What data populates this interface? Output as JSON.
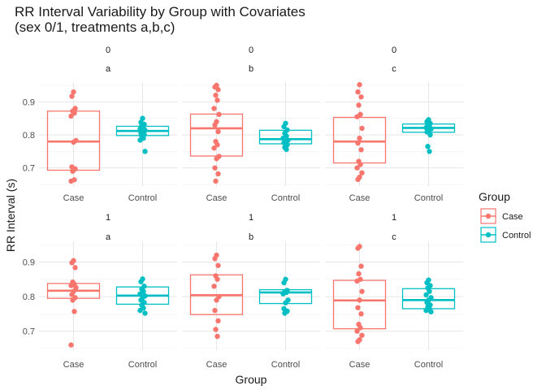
{
  "chart_data": {
    "type": "boxplot",
    "title": [
      "RR Interval Variability by Group with Covariates",
      "(sex 0/1, treatments a,b,c)"
    ],
    "xlabel": "Group",
    "ylabel": "RR Interval (s)",
    "categories": [
      "Case",
      "Control"
    ],
    "y_ticks": [
      0.7,
      0.8,
      0.9
    ],
    "ylim": [
      0.645,
      0.96
    ],
    "grid": true,
    "legend": {
      "title": "Group",
      "placement": "right",
      "entries": [
        {
          "name": "Case",
          "color": "#F8766D"
        },
        {
          "name": "Control",
          "color": "#00BFC4"
        }
      ]
    },
    "colors": {
      "Case": "#F8766D",
      "Control": "#00BFC4"
    },
    "panels": [
      {
        "sex": "0",
        "treatment": "a",
        "groups": [
          {
            "name": "Case",
            "box": {
              "q1": 0.693,
              "median": 0.78,
              "q3": 0.872
            },
            "points": [
              0.93,
              0.917,
              0.88,
              0.872,
              0.866,
              0.857,
              0.783,
              0.778,
              0.703,
              0.697,
              0.69,
              0.664,
              0.66
            ]
          },
          {
            "name": "Control",
            "box": {
              "q1": 0.798,
              "median": 0.812,
              "q3": 0.826
            },
            "points": [
              0.85,
              0.838,
              0.832,
              0.828,
              0.822,
              0.818,
              0.814,
              0.81,
              0.806,
              0.801,
              0.796,
              0.79,
              0.784,
              0.75
            ]
          }
        ]
      },
      {
        "sex": "0",
        "treatment": "b",
        "groups": [
          {
            "name": "Case",
            "box": {
              "q1": 0.736,
              "median": 0.82,
              "q3": 0.863
            },
            "points": [
              0.95,
              0.945,
              0.937,
              0.92,
              0.905,
              0.88,
              0.862,
              0.84,
              0.83,
              0.81,
              0.78,
              0.77,
              0.76,
              0.735,
              0.728,
              0.7,
              0.682,
              0.66
            ]
          },
          {
            "name": "Control",
            "box": {
              "q1": 0.773,
              "median": 0.787,
              "q3": 0.814
            },
            "points": [
              0.835,
              0.825,
              0.815,
              0.805,
              0.797,
              0.79,
              0.784,
              0.78,
              0.776,
              0.77,
              0.762,
              0.756
            ]
          }
        ]
      },
      {
        "sex": "0",
        "treatment": "c",
        "groups": [
          {
            "name": "Case",
            "box": {
              "q1": 0.715,
              "median": 0.78,
              "q3": 0.853
            },
            "points": [
              0.952,
              0.93,
              0.915,
              0.89,
              0.862,
              0.855,
              0.82,
              0.79,
              0.775,
              0.755,
              0.72,
              0.71,
              0.7,
              0.685,
              0.672,
              0.665
            ]
          },
          {
            "name": "Control",
            "box": {
              "q1": 0.808,
              "median": 0.821,
              "q3": 0.833
            },
            "points": [
              0.846,
              0.84,
              0.835,
              0.83,
              0.826,
              0.822,
              0.818,
              0.814,
              0.809,
              0.8,
              0.765,
              0.75
            ]
          }
        ]
      },
      {
        "sex": "1",
        "treatment": "a",
        "groups": [
          {
            "name": "Case",
            "box": {
              "q1": 0.795,
              "median": 0.817,
              "q3": 0.838
            },
            "points": [
              0.904,
              0.898,
              0.884,
              0.842,
              0.836,
              0.832,
              0.826,
              0.815,
              0.806,
              0.797,
              0.79,
              0.757,
              0.66
            ]
          },
          {
            "name": "Control",
            "box": {
              "q1": 0.778,
              "median": 0.803,
              "q3": 0.828
            },
            "points": [
              0.851,
              0.843,
              0.83,
              0.822,
              0.815,
              0.808,
              0.802,
              0.797,
              0.79,
              0.783,
              0.775,
              0.767,
              0.76,
              0.752
            ]
          }
        ]
      },
      {
        "sex": "1",
        "treatment": "b",
        "groups": [
          {
            "name": "Case",
            "box": {
              "q1": 0.748,
              "median": 0.804,
              "q3": 0.863
            },
            "points": [
              0.92,
              0.91,
              0.89,
              0.86,
              0.85,
              0.83,
              0.8,
              0.79,
              0.76,
              0.73,
              0.705,
              0.685
            ]
          },
          {
            "name": "Control",
            "box": {
              "q1": 0.78,
              "median": 0.812,
              "q3": 0.82
            },
            "points": [
              0.85,
              0.84,
              0.818,
              0.815,
              0.812,
              0.808,
              0.79,
              0.782,
              0.765,
              0.758,
              0.752
            ]
          }
        ]
      },
      {
        "sex": "1",
        "treatment": "c",
        "groups": [
          {
            "name": "Case",
            "box": {
              "q1": 0.707,
              "median": 0.789,
              "q3": 0.847
            },
            "points": [
              0.945,
              0.94,
              0.888,
              0.866,
              0.85,
              0.845,
              0.815,
              0.79,
              0.768,
              0.75,
              0.72,
              0.71,
              0.7,
              0.688,
              0.675,
              0.67
            ]
          },
          {
            "name": "Control",
            "box": {
              "q1": 0.765,
              "median": 0.79,
              "q3": 0.823
            },
            "points": [
              0.848,
              0.84,
              0.832,
              0.825,
              0.815,
              0.805,
              0.797,
              0.79,
              0.783,
              0.776,
              0.77,
              0.765,
              0.76,
              0.756
            ]
          }
        ]
      }
    ]
  }
}
